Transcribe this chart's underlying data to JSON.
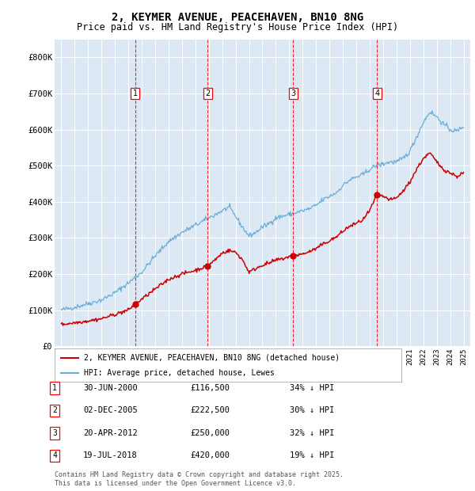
{
  "title": "2, KEYMER AVENUE, PEACEHAVEN, BN10 8NG",
  "subtitle": "Price paid vs. HM Land Registry's House Price Index (HPI)",
  "title_fontsize": 10,
  "subtitle_fontsize": 8.5,
  "bg_color": "#dce9f5",
  "fig_bg_color": "#ffffff",
  "hpi_color": "#6aaed6",
  "price_color": "#cc0000",
  "ylim": [
    0,
    850000
  ],
  "yticks": [
    0,
    100000,
    200000,
    300000,
    400000,
    500000,
    600000,
    700000,
    800000
  ],
  "ytick_labels": [
    "£0",
    "£100K",
    "£200K",
    "£300K",
    "£400K",
    "£500K",
    "£600K",
    "£700K",
    "£800K"
  ],
  "xmin": 1994.5,
  "xmax": 2025.5,
  "transactions": [
    {
      "num": 1,
      "date": "30-JUN-2000",
      "x": 2000.5,
      "price": 116500,
      "price_str": "£116,500",
      "pct": "34%",
      "dir": "↓"
    },
    {
      "num": 2,
      "date": "02-DEC-2005",
      "x": 2005.92,
      "price": 222500,
      "price_str": "£222,500",
      "pct": "30%",
      "dir": "↓"
    },
    {
      "num": 3,
      "date": "20-APR-2012",
      "x": 2012.3,
      "price": 250000,
      "price_str": "£250,000",
      "pct": "32%",
      "dir": "↓"
    },
    {
      "num": 4,
      "date": "19-JUL-2018",
      "x": 2018.55,
      "price": 420000,
      "price_str": "£420,000",
      "pct": "19%",
      "dir": "↓"
    }
  ],
  "legend_line1": "2, KEYMER AVENUE, PEACEHAVEN, BN10 8NG (detached house)",
  "legend_line2": "HPI: Average price, detached house, Lewes",
  "footer1": "Contains HM Land Registry data © Crown copyright and database right 2025.",
  "footer2": "This data is licensed under the Open Government Licence v3.0."
}
